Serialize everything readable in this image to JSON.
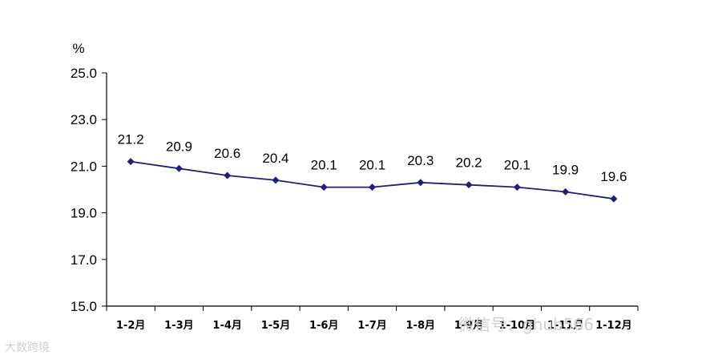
{
  "chart_data": {
    "type": "line",
    "title": "",
    "xlabel": "",
    "ylabel": "%",
    "categories": [
      "1-2月",
      "1-3月",
      "1-4月",
      "1-5月",
      "1-6月",
      "1-7月",
      "1-8月",
      "1-9月",
      "1-10月",
      "1-11月",
      "1-12月"
    ],
    "values": [
      21.2,
      20.9,
      20.6,
      20.4,
      20.1,
      20.1,
      20.3,
      20.2,
      20.1,
      19.9,
      19.6
    ],
    "data_labels": [
      "21.2",
      "20.9",
      "20.6",
      "20.4",
      "20.1",
      "20.1",
      "20.3",
      "20.2",
      "20.1",
      "19.9",
      "19.6"
    ],
    "yticks": [
      "15.0",
      "17.0",
      "19.0",
      "21.0",
      "23.0",
      "25.0"
    ],
    "ylim": [
      15,
      25
    ],
    "grid": false,
    "legend": "none",
    "line_color": "#1f1f7a",
    "marker": "diamond"
  },
  "watermarks": {
    "left": "大数跨境",
    "right": "微信号：ghub566"
  }
}
